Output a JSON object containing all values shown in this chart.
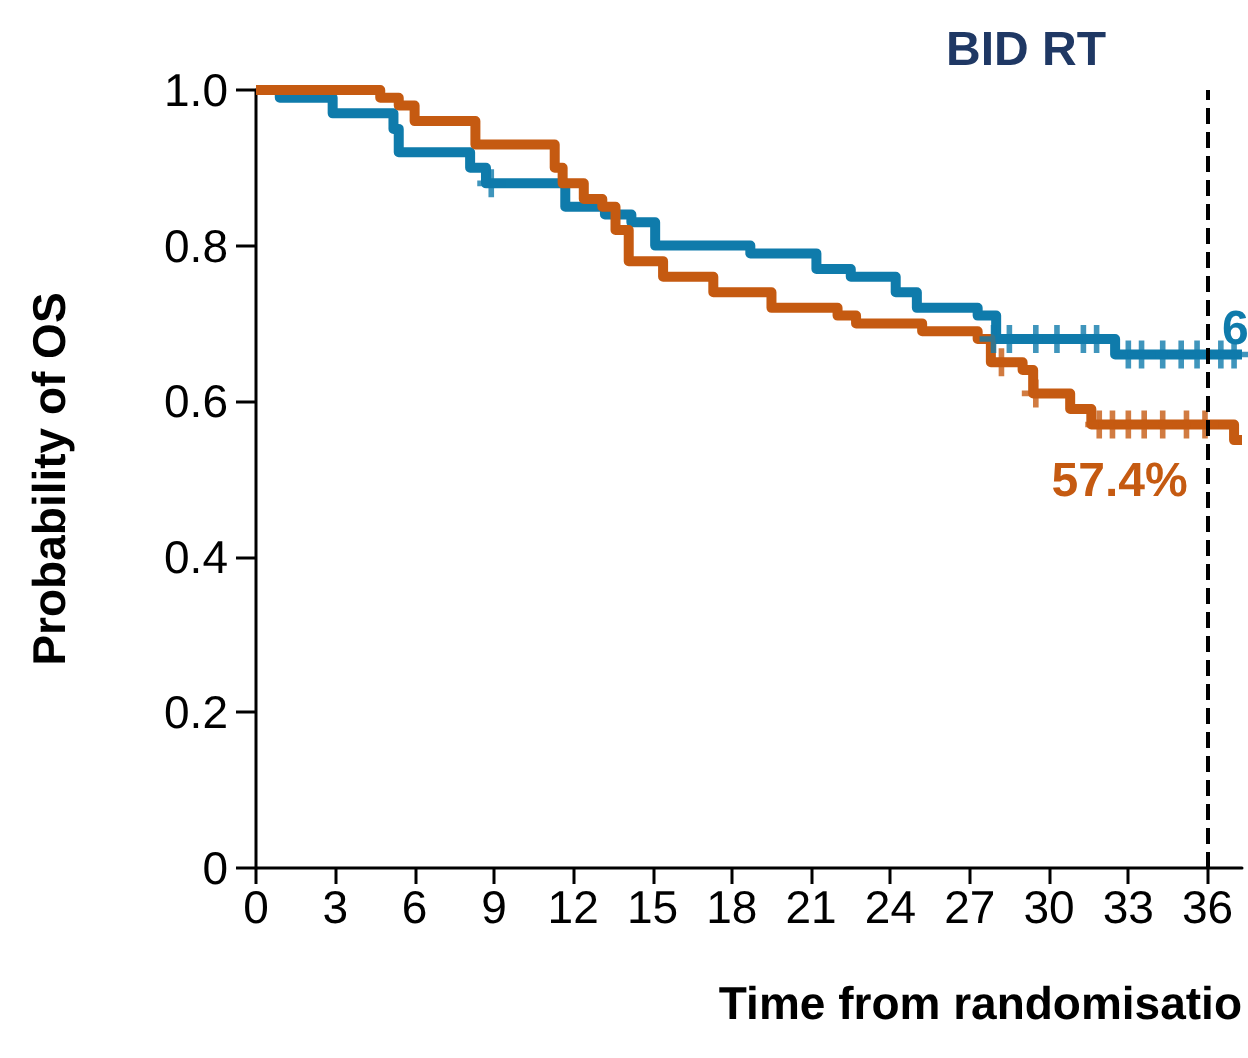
{
  "chart_data": {
    "type": "step",
    "title": "BID RT",
    "xlabel": "Time from randomisatio",
    "ylabel": "Probability of OS",
    "xlim": [
      0,
      37.3
    ],
    "xticks": [
      0,
      3,
      6,
      9,
      12,
      15,
      18,
      21,
      24,
      27,
      30,
      33,
      36
    ],
    "ylim": [
      0,
      1
    ],
    "yticks": [
      0,
      {
        "value": 0.2,
        "label": "0.2"
      },
      {
        "value": 0.4,
        "label": "0.4"
      },
      {
        "value": 0.6,
        "label": "0.6"
      },
      {
        "value": 0.8,
        "label": "0.8"
      },
      {
        "value": 1,
        "label": "1.0"
      }
    ],
    "grid": false,
    "marker": "none",
    "line_style": "solid",
    "series": [
      {
        "color": "#0f7bab",
        "x": [
          0,
          0.9,
          2.9,
          4.1,
          5.2,
          5.4,
          8.1,
          8.7,
          10.5,
          11.7,
          13.2,
          14.2,
          15.1,
          18.7,
          21.2,
          22.5,
          24.2,
          25.0,
          27.3,
          28.0,
          32.5,
          37.3
        ],
        "values": [
          1.0,
          0.99,
          0.97,
          0.97,
          0.95,
          0.92,
          0.9,
          0.88,
          0.88,
          0.85,
          0.84,
          0.83,
          0.8,
          0.79,
          0.77,
          0.76,
          0.74,
          0.72,
          0.71,
          0.68,
          0.66,
          0.66
        ]
      },
      {
        "color": "#c55a11",
        "x": [
          0,
          4.7,
          5.4,
          6.0,
          8.3,
          11.3,
          11.6,
          12.4,
          13.1,
          13.6,
          14.1,
          15.4,
          17.3,
          19.5,
          22.0,
          22.7,
          25.2,
          27.3,
          27.8,
          29.0,
          29.4,
          30.8,
          31.6,
          37.0,
          37.3
        ],
        "values": [
          1.0,
          0.99,
          0.98,
          0.96,
          0.93,
          0.9,
          0.88,
          0.86,
          0.85,
          0.82,
          0.78,
          0.76,
          0.74,
          0.72,
          0.71,
          0.7,
          0.69,
          0.68,
          0.65,
          0.64,
          0.61,
          0.59,
          0.57,
          0.55,
          0.55
        ]
      },
      {
        "type": "scatter",
        "marker": "cross",
        "color": "#0f7bab",
        "x": [
          8.9,
          27.9,
          28.5,
          29.5,
          30.3,
          31.3,
          31.8,
          33.0,
          33.5,
          34.3,
          35.0,
          35.6,
          36.5,
          37.0
        ],
        "values": [
          0.88,
          0.68,
          0.68,
          0.68,
          0.68,
          0.68,
          0.68,
          0.66,
          0.66,
          0.66,
          0.66,
          0.66,
          0.66,
          0.66
        ]
      },
      {
        "type": "scatter",
        "marker": "cross",
        "color": "#c55a11",
        "x": [
          28.2,
          29.5,
          31.9,
          32.4,
          33.0,
          33.6,
          34.3,
          35.2,
          35.9
        ],
        "values": [
          0.65,
          0.61,
          0.57,
          0.57,
          0.57,
          0.57,
          0.57,
          0.57,
          0.57
        ]
      }
    ],
    "ref_lines": [
      {
        "axis": "x",
        "value": 36,
        "color": "#000000",
        "line_style": "dashed"
      }
    ],
    "annotations": [
      {
        "text": "57.4%",
        "x": 36,
        "y": 0.574
      },
      {
        "text": "6",
        "x": 37.3,
        "y": 0.66
      }
    ]
  }
}
